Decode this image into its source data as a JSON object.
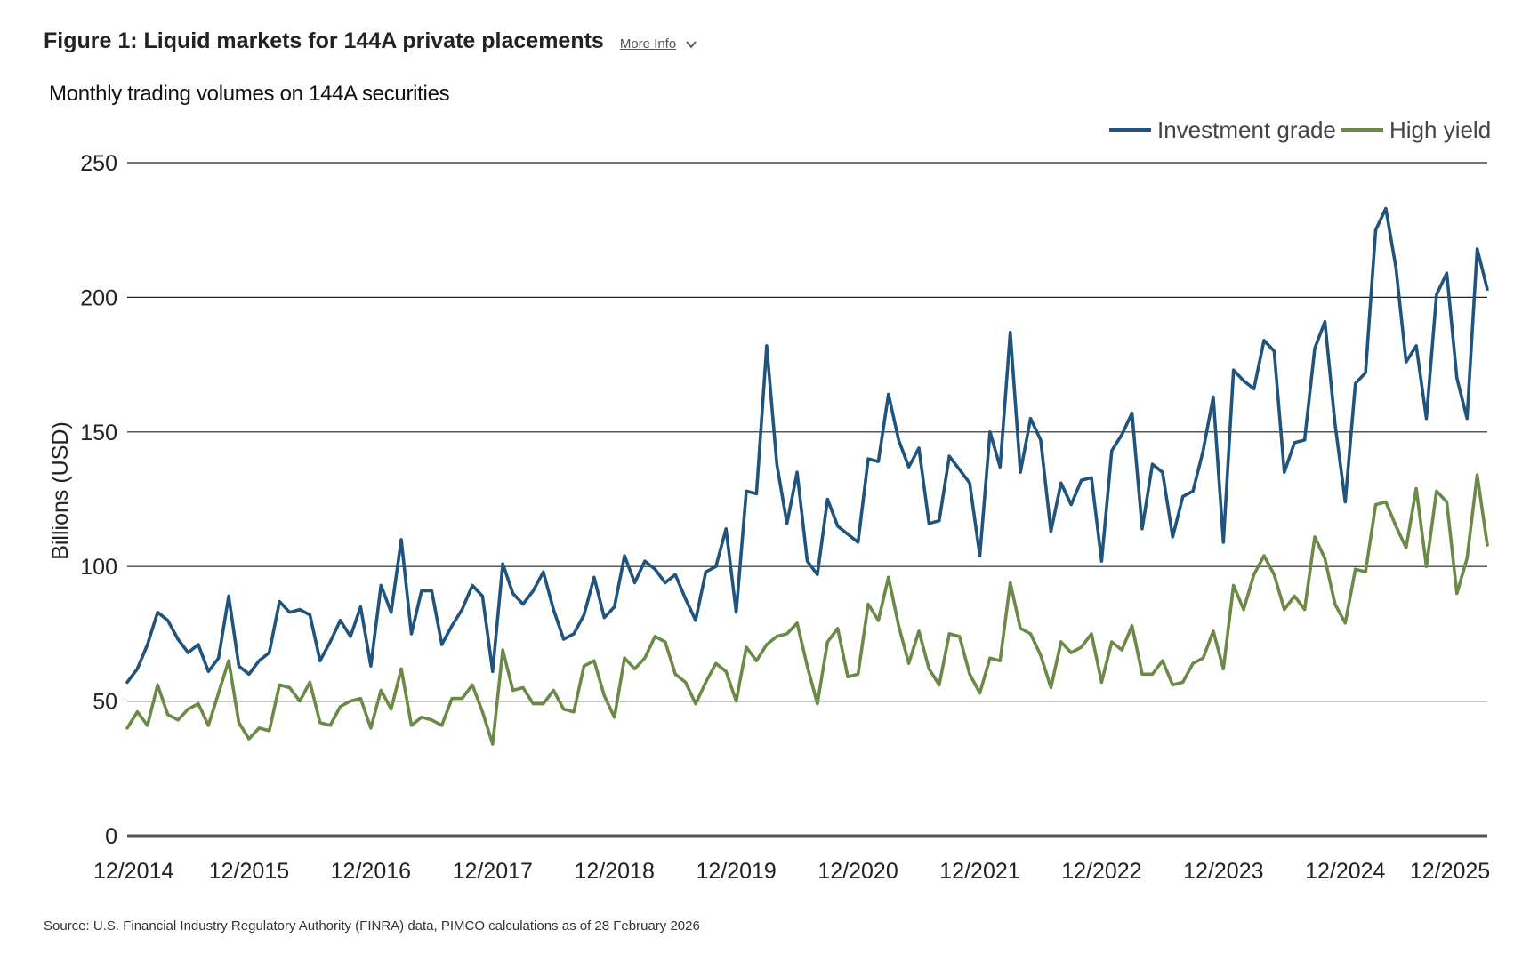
{
  "header": {
    "title": "Figure 1: Liquid markets for 144A private placements",
    "more_info": "More Info",
    "subtitle": "Monthly trading volumes on 144A securities"
  },
  "footer": {
    "source": "Source: U.S. Financial Industry Regulatory Authority (FINRA) data, PIMCO calculations as of 28 February 2026"
  },
  "colors": {
    "investment_grade": "#21547d",
    "high_yield": "#6b8a48",
    "grid": "#222222",
    "axis": "#555555"
  },
  "chart_data": {
    "type": "line",
    "title": "Monthly trading volumes on 144A securities",
    "ylabel": "Billions (USD)",
    "xlabel": "",
    "ylim": [
      0,
      250
    ],
    "yticks": [
      0,
      50,
      100,
      150,
      200,
      250
    ],
    "x_tick_labels": [
      "12/2014",
      "12/2015",
      "12/2016",
      "12/2017",
      "12/2018",
      "12/2019",
      "12/2020",
      "12/2021",
      "12/2022",
      "12/2023",
      "12/2024",
      "12/2025"
    ],
    "x_start": "12/2014",
    "x_end": "02/2026",
    "grid": true,
    "legend_position": "top-right",
    "series": [
      {
        "name": "Investment grade",
        "values": [
          57,
          62,
          71,
          83,
          80,
          73,
          68,
          71,
          61,
          66,
          89,
          63,
          60,
          65,
          68,
          87,
          83,
          84,
          82,
          65,
          72,
          80,
          74,
          85,
          63,
          93,
          83,
          110,
          75,
          91,
          91,
          71,
          78,
          84,
          93,
          89,
          61,
          101,
          90,
          86,
          91,
          98,
          84,
          73,
          75,
          82,
          96,
          81,
          85,
          104,
          94,
          102,
          99,
          94,
          97,
          88,
          80,
          98,
          100,
          114,
          83,
          128,
          127,
          182,
          138,
          116,
          135,
          102,
          97,
          125,
          115,
          112,
          109,
          140,
          139,
          164,
          147,
          137,
          144,
          116,
          117,
          141,
          136,
          131,
          104,
          150,
          137,
          187,
          135,
          155,
          147,
          113,
          131,
          123,
          132,
          133,
          102,
          143,
          149,
          157,
          114,
          138,
          135,
          111,
          126,
          128,
          143,
          163,
          109,
          173,
          169,
          166,
          184,
          180,
          135,
          146,
          147,
          181,
          191,
          153,
          124,
          168,
          172,
          225,
          233,
          211,
          176,
          182,
          155,
          201,
          209,
          170,
          155,
          218,
          203
        ]
      },
      {
        "name": "High yield",
        "values": [
          40,
          46,
          41,
          56,
          45,
          43,
          47,
          49,
          41,
          53,
          65,
          42,
          36,
          40,
          39,
          56,
          55,
          50,
          57,
          42,
          41,
          48,
          50,
          51,
          40,
          54,
          47,
          62,
          41,
          44,
          43,
          41,
          51,
          51,
          56,
          46,
          34,
          69,
          54,
          55,
          49,
          49,
          54,
          47,
          46,
          63,
          65,
          52,
          44,
          66,
          62,
          66,
          74,
          72,
          60,
          57,
          49,
          57,
          64,
          61,
          50,
          70,
          65,
          71,
          74,
          75,
          79,
          63,
          49,
          72,
          77,
          59,
          60,
          86,
          80,
          96,
          78,
          64,
          76,
          62,
          56,
          75,
          74,
          60,
          53,
          66,
          65,
          94,
          77,
          75,
          67,
          55,
          72,
          68,
          70,
          75,
          57,
          72,
          69,
          78,
          60,
          60,
          65,
          56,
          57,
          64,
          66,
          76,
          62,
          93,
          84,
          97,
          104,
          97,
          84,
          89,
          84,
          111,
          103,
          86,
          79,
          99,
          98,
          123,
          124,
          115,
          107,
          129,
          100,
          128,
          124,
          90,
          103,
          134,
          108
        ]
      }
    ]
  }
}
